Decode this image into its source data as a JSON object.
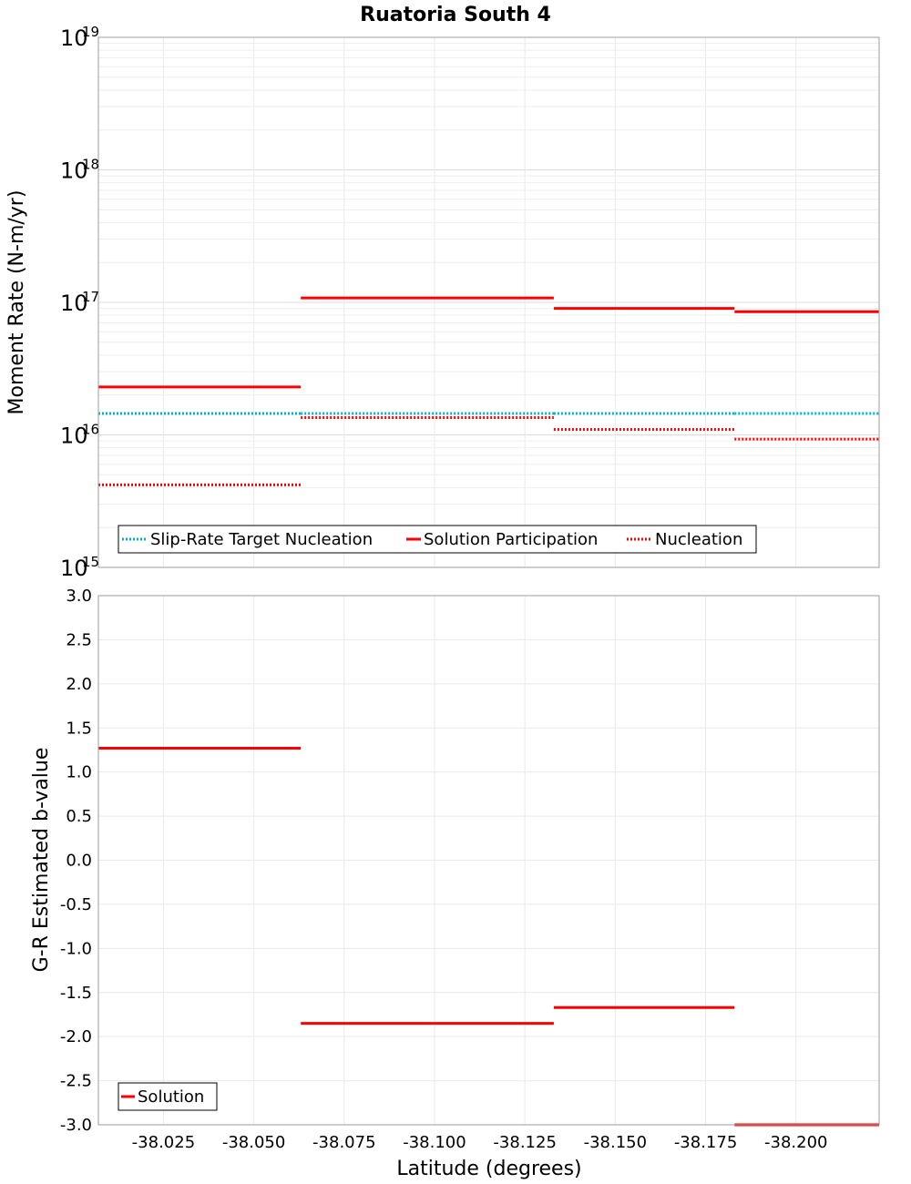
{
  "chart_data": {
    "title": "Ruatoria South 4",
    "xlabel": "Latitude (degrees)",
    "xlim": [
      -38.007,
      -38.223
    ],
    "xticks": [
      "-38.025",
      "-38.050",
      "-38.075",
      "-38.100",
      "-38.125",
      "-38.150",
      "-38.175",
      "-38.200"
    ],
    "xtick_values": [
      -38.025,
      -38.05,
      -38.075,
      -38.1,
      -38.125,
      -38.15,
      -38.175,
      -38.2
    ],
    "panels": [
      {
        "id": "moment",
        "type": "line",
        "ylabel": "Moment Rate (N-m/yr)",
        "yscale": "log",
        "ylim": [
          1000000000000000.0,
          1e+19
        ],
        "yticks": [
          {
            "value": 1e+19,
            "base": "10",
            "exp": "19"
          },
          {
            "value": 1e+18,
            "base": "10",
            "exp": "18"
          },
          {
            "value": 1e+17,
            "base": "10",
            "exp": "17"
          },
          {
            "value": 1e+16,
            "base": "10",
            "exp": "16"
          },
          {
            "value": 1000000000000000.0,
            "base": "10",
            "exp": "15"
          }
        ],
        "series": [
          {
            "name": "Slip-Rate Target Nucleation",
            "color": "#00b4c8",
            "style": "dotted",
            "segments": [
              {
                "x": [
                  -38.007,
                  -38.063
                ],
                "y": 1.45e+16
              },
              {
                "x": [
                  -38.063,
                  -38.133
                ],
                "y": 1.45e+16
              },
              {
                "x": [
                  -38.133,
                  -38.183
                ],
                "y": 1.45e+16
              },
              {
                "x": [
                  -38.183,
                  -38.223
                ],
                "y": 1.45e+16
              }
            ]
          },
          {
            "name": "Solution Participation",
            "color": "#ff0000",
            "style": "solid",
            "segments": [
              {
                "x": [
                  -38.007,
                  -38.063
                ],
                "y": 2.3e+16
              },
              {
                "x": [
                  -38.063,
                  -38.133
                ],
                "y": 1.08e+17
              },
              {
                "x": [
                  -38.133,
                  -38.183
                ],
                "y": 9e+16
              },
              {
                "x": [
                  -38.183,
                  -38.223
                ],
                "y": 8.5e+16
              }
            ]
          },
          {
            "name": "Nucleation",
            "color": "#ff0000",
            "style": "dotted",
            "segments": [
              {
                "x": [
                  -38.007,
                  -38.063
                ],
                "y": 4200000000000000.0
              },
              {
                "x": [
                  -38.063,
                  -38.133
                ],
                "y": 1.35e+16
              },
              {
                "x": [
                  -38.133,
                  -38.183
                ],
                "y": 1.1e+16
              },
              {
                "x": [
                  -38.183,
                  -38.223
                ],
                "y": 9300000000000000.0
              }
            ]
          }
        ],
        "legend": [
          "Slip-Rate Target Nucleation",
          "Solution Participation",
          "Nucleation"
        ]
      },
      {
        "id": "bvalue",
        "type": "line",
        "ylabel": "G-R Estimated b-value",
        "yscale": "linear",
        "ylim": [
          -3.0,
          3.0
        ],
        "yticks": [
          "3.0",
          "2.5",
          "2.0",
          "1.5",
          "1.0",
          "0.5",
          "0.0",
          "-0.5",
          "-1.0",
          "-1.5",
          "-2.0",
          "-2.5",
          "-3.0"
        ],
        "ytick_values": [
          3.0,
          2.5,
          2.0,
          1.5,
          1.0,
          0.5,
          0.0,
          -0.5,
          -1.0,
          -1.5,
          -2.0,
          -2.5,
          -3.0
        ],
        "series": [
          {
            "name": "Solution",
            "color": "#ff0000",
            "style": "solid",
            "segments": [
              {
                "x": [
                  -38.007,
                  -38.063
                ],
                "y": 1.27
              },
              {
                "x": [
                  -38.063,
                  -38.133
                ],
                "y": -1.85
              },
              {
                "x": [
                  -38.133,
                  -38.183
                ],
                "y": -1.67
              },
              {
                "x": [
                  -38.183,
                  -38.223
                ],
                "y": -3.0
              }
            ]
          }
        ],
        "legend": [
          "Solution"
        ]
      }
    ]
  }
}
